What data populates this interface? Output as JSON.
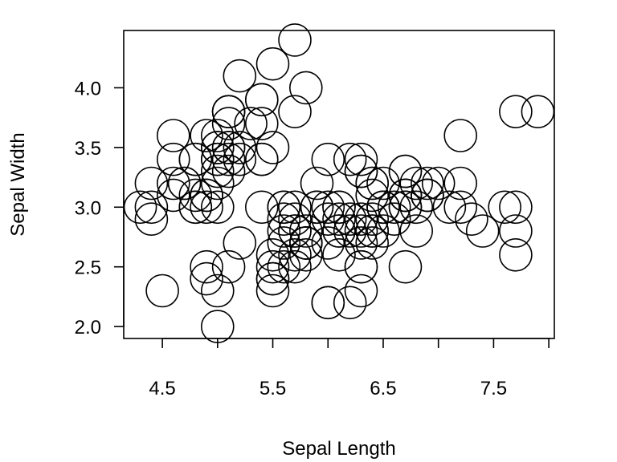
{
  "chart_data": {
    "type": "scatter",
    "xlabel": "Sepal Length",
    "ylabel": "Sepal Width",
    "xlim": [
      4.15,
      8.05
    ],
    "ylim": [
      1.9,
      4.48
    ],
    "x_ticks": [
      4.5,
      5.5,
      6.5,
      7.5
    ],
    "x_tick_labels": [
      "4.5",
      "5.5",
      "6.5",
      "7.5"
    ],
    "x_minor_ticks": [
      5.0,
      6.0,
      7.0,
      8.0
    ],
    "y_ticks": [
      2.0,
      2.5,
      3.0,
      3.5,
      4.0
    ],
    "y_tick_labels": [
      "2.0",
      "2.5",
      "3.0",
      "3.5",
      "4.0"
    ],
    "grid": false,
    "marker": "open-circle",
    "points": [
      [
        5.1,
        3.5
      ],
      [
        4.9,
        3.0
      ],
      [
        4.7,
        3.2
      ],
      [
        4.6,
        3.1
      ],
      [
        5.0,
        3.6
      ],
      [
        5.4,
        3.9
      ],
      [
        4.6,
        3.4
      ],
      [
        5.0,
        3.4
      ],
      [
        4.4,
        2.9
      ],
      [
        4.9,
        3.1
      ],
      [
        5.4,
        3.7
      ],
      [
        4.8,
        3.4
      ],
      [
        4.8,
        3.0
      ],
      [
        4.3,
        3.0
      ],
      [
        5.8,
        4.0
      ],
      [
        5.7,
        4.4
      ],
      [
        5.4,
        3.9
      ],
      [
        5.1,
        3.5
      ],
      [
        5.7,
        3.8
      ],
      [
        5.1,
        3.8
      ],
      [
        5.4,
        3.4
      ],
      [
        5.1,
        3.7
      ],
      [
        4.6,
        3.6
      ],
      [
        5.1,
        3.3
      ],
      [
        4.8,
        3.4
      ],
      [
        5.0,
        3.0
      ],
      [
        5.0,
        3.4
      ],
      [
        5.2,
        3.5
      ],
      [
        5.2,
        3.4
      ],
      [
        4.7,
        3.2
      ],
      [
        4.8,
        3.1
      ],
      [
        5.4,
        3.4
      ],
      [
        5.2,
        4.1
      ],
      [
        5.5,
        4.2
      ],
      [
        4.9,
        3.1
      ],
      [
        5.0,
        3.2
      ],
      [
        5.5,
        3.5
      ],
      [
        4.9,
        3.6
      ],
      [
        4.4,
        3.0
      ],
      [
        5.1,
        3.4
      ],
      [
        5.0,
        3.5
      ],
      [
        4.5,
        2.3
      ],
      [
        4.4,
        3.2
      ],
      [
        5.0,
        3.5
      ],
      [
        5.1,
        3.8
      ],
      [
        4.8,
        3.0
      ],
      [
        5.1,
        3.8
      ],
      [
        4.6,
        3.2
      ],
      [
        5.3,
        3.7
      ],
      [
        5.0,
        3.3
      ],
      [
        7.0,
        3.2
      ],
      [
        6.4,
        3.2
      ],
      [
        6.9,
        3.1
      ],
      [
        5.5,
        2.3
      ],
      [
        6.5,
        2.8
      ],
      [
        5.7,
        2.8
      ],
      [
        6.3,
        3.3
      ],
      [
        4.9,
        2.4
      ],
      [
        6.6,
        2.9
      ],
      [
        5.2,
        2.7
      ],
      [
        5.0,
        2.0
      ],
      [
        5.9,
        3.0
      ],
      [
        6.0,
        2.2
      ],
      [
        6.1,
        2.9
      ],
      [
        5.6,
        2.9
      ],
      [
        6.7,
        3.1
      ],
      [
        5.6,
        3.0
      ],
      [
        5.8,
        2.7
      ],
      [
        6.2,
        2.2
      ],
      [
        5.6,
        2.5
      ],
      [
        5.9,
        3.2
      ],
      [
        6.1,
        2.8
      ],
      [
        6.3,
        2.5
      ],
      [
        6.1,
        2.8
      ],
      [
        6.4,
        2.9
      ],
      [
        6.6,
        3.0
      ],
      [
        6.8,
        2.8
      ],
      [
        6.7,
        3.0
      ],
      [
        6.0,
        2.9
      ],
      [
        5.7,
        2.6
      ],
      [
        5.5,
        2.4
      ],
      [
        5.5,
        2.4
      ],
      [
        5.8,
        2.7
      ],
      [
        6.0,
        2.7
      ],
      [
        5.4,
        3.0
      ],
      [
        6.0,
        3.4
      ],
      [
        6.7,
        3.1
      ],
      [
        6.3,
        2.3
      ],
      [
        5.6,
        3.0
      ],
      [
        5.5,
        2.5
      ],
      [
        5.5,
        2.6
      ],
      [
        6.1,
        3.0
      ],
      [
        5.8,
        2.6
      ],
      [
        5.0,
        2.3
      ],
      [
        5.6,
        2.7
      ],
      [
        5.7,
        3.0
      ],
      [
        5.7,
        2.9
      ],
      [
        6.2,
        2.9
      ],
      [
        5.1,
        2.5
      ],
      [
        5.7,
        2.8
      ],
      [
        6.3,
        3.3
      ],
      [
        5.8,
        2.7
      ],
      [
        7.1,
        3.0
      ],
      [
        6.3,
        2.9
      ],
      [
        6.5,
        3.0
      ],
      [
        7.6,
        3.0
      ],
      [
        4.9,
        2.5
      ],
      [
        7.3,
        2.9
      ],
      [
        6.7,
        2.5
      ],
      [
        7.2,
        3.6
      ],
      [
        6.5,
        3.2
      ],
      [
        6.4,
        2.7
      ],
      [
        6.8,
        3.0
      ],
      [
        5.7,
        2.5
      ],
      [
        5.8,
        2.8
      ],
      [
        6.4,
        3.2
      ],
      [
        6.5,
        3.0
      ],
      [
        7.7,
        3.8
      ],
      [
        7.7,
        2.6
      ],
      [
        6.0,
        2.2
      ],
      [
        6.9,
        3.2
      ],
      [
        5.6,
        2.8
      ],
      [
        7.7,
        2.8
      ],
      [
        6.3,
        2.7
      ],
      [
        6.7,
        3.3
      ],
      [
        7.2,
        3.2
      ],
      [
        6.2,
        2.8
      ],
      [
        6.1,
        3.0
      ],
      [
        6.4,
        2.8
      ],
      [
        7.2,
        3.0
      ],
      [
        7.4,
        2.8
      ],
      [
        7.9,
        3.8
      ],
      [
        6.4,
        2.8
      ],
      [
        6.3,
        2.8
      ],
      [
        6.1,
        2.6
      ],
      [
        7.7,
        3.0
      ],
      [
        6.3,
        3.4
      ],
      [
        6.4,
        3.1
      ],
      [
        6.0,
        3.0
      ],
      [
        6.9,
        3.1
      ],
      [
        6.7,
        3.1
      ],
      [
        6.9,
        3.1
      ],
      [
        5.8,
        2.7
      ],
      [
        6.8,
        3.2
      ],
      [
        6.7,
        3.3
      ],
      [
        6.7,
        3.0
      ],
      [
        6.3,
        2.5
      ],
      [
        6.5,
        3.0
      ],
      [
        6.2,
        3.4
      ],
      [
        5.9,
        3.0
      ]
    ]
  }
}
